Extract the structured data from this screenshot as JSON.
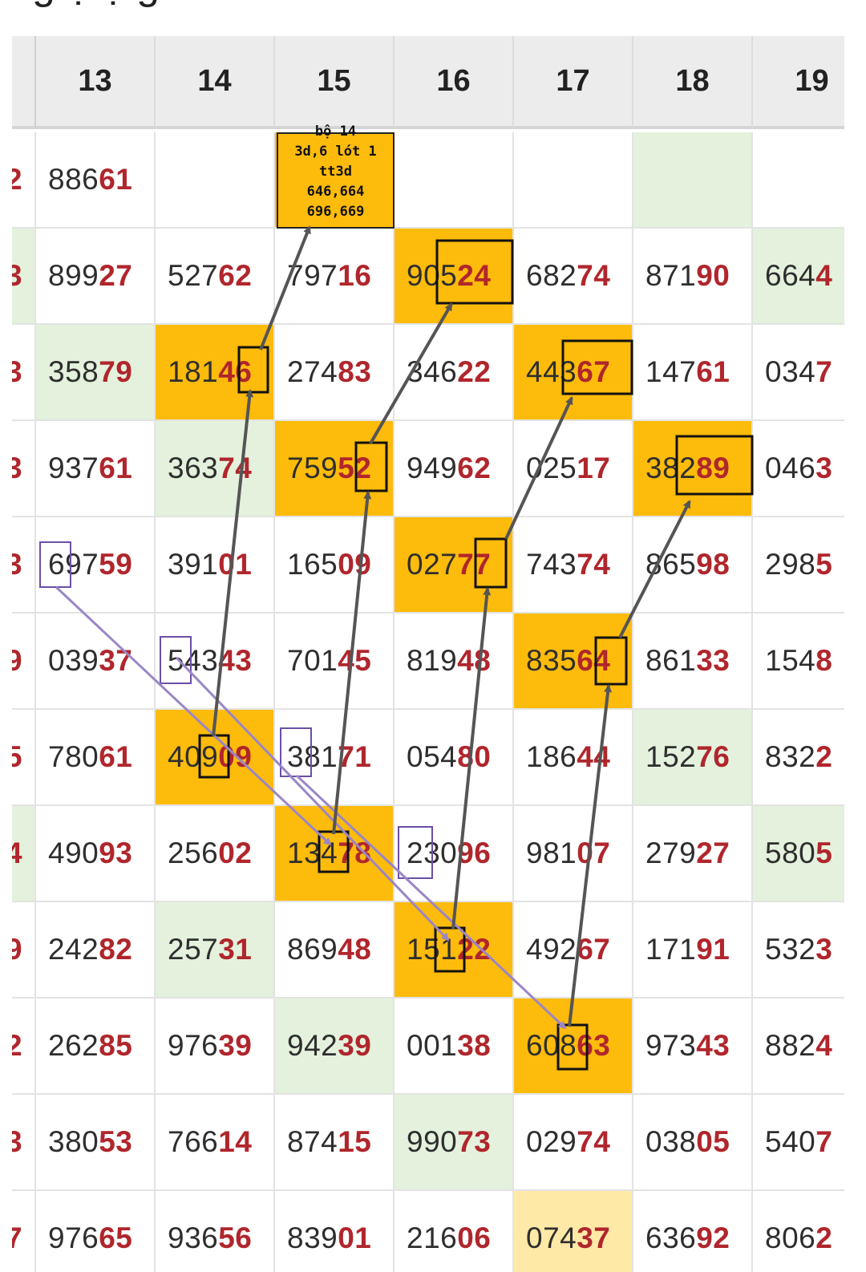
{
  "heading_fragment": "g ọ ọ g",
  "columns": [
    "",
    "13",
    "14",
    "15",
    "16",
    "17",
    "18",
    "19"
  ],
  "rows": [
    [
      {
        "p": "",
        "t": "2",
        "bg": "white"
      },
      {
        "p": "886",
        "t": "61",
        "bg": "white"
      },
      {
        "p": "",
        "t": "",
        "bg": "white"
      },
      {
        "p": "",
        "t": "",
        "bg": "gold"
      },
      {
        "p": "",
        "t": "",
        "bg": "white"
      },
      {
        "p": "",
        "t": "",
        "bg": "white"
      },
      {
        "p": "",
        "t": "",
        "bg": "green"
      },
      {
        "p": "",
        "t": "",
        "bg": "white"
      }
    ],
    [
      {
        "p": "",
        "t": "3",
        "bg": "green"
      },
      {
        "p": "899",
        "t": "27",
        "bg": "white"
      },
      {
        "p": "527",
        "t": "62",
        "bg": "white"
      },
      {
        "p": "797",
        "t": "16",
        "bg": "white"
      },
      {
        "p": "905",
        "t": "24",
        "bg": "gold"
      },
      {
        "p": "682",
        "t": "74",
        "bg": "white"
      },
      {
        "p": "871",
        "t": "90",
        "bg": "white"
      },
      {
        "p": "664",
        "t": "4",
        "bg": "green"
      }
    ],
    [
      {
        "p": "",
        "t": "3",
        "bg": "white"
      },
      {
        "p": "358",
        "t": "79",
        "bg": "green"
      },
      {
        "p": "181",
        "t": "46",
        "bg": "gold"
      },
      {
        "p": "274",
        "t": "83",
        "bg": "white"
      },
      {
        "p": "346",
        "t": "22",
        "bg": "white"
      },
      {
        "p": "443",
        "t": "67",
        "bg": "gold"
      },
      {
        "p": "147",
        "t": "61",
        "bg": "white"
      },
      {
        "p": "034",
        "t": "7",
        "bg": "white"
      }
    ],
    [
      {
        "p": "",
        "t": "3",
        "bg": "white"
      },
      {
        "p": "937",
        "t": "61",
        "bg": "white"
      },
      {
        "p": "363",
        "t": "74",
        "bg": "green"
      },
      {
        "p": "759",
        "t": "52",
        "bg": "gold"
      },
      {
        "p": "949",
        "t": "62",
        "bg": "white"
      },
      {
        "p": "025",
        "t": "17",
        "bg": "white"
      },
      {
        "p": "382",
        "t": "89",
        "bg": "gold"
      },
      {
        "p": "046",
        "t": "3",
        "bg": "white"
      }
    ],
    [
      {
        "p": "",
        "t": "3",
        "bg": "white"
      },
      {
        "p": "697",
        "t": "59",
        "bg": "white"
      },
      {
        "p": "391",
        "t": "01",
        "bg": "white"
      },
      {
        "p": "165",
        "t": "09",
        "bg": "white"
      },
      {
        "p": "027",
        "t": "77",
        "bg": "gold"
      },
      {
        "p": "743",
        "t": "74",
        "bg": "white"
      },
      {
        "p": "865",
        "t": "98",
        "bg": "white"
      },
      {
        "p": "298",
        "t": "5",
        "bg": "white"
      }
    ],
    [
      {
        "p": "",
        "t": "9",
        "bg": "white"
      },
      {
        "p": "039",
        "t": "37",
        "bg": "white"
      },
      {
        "p": "543",
        "t": "43",
        "bg": "white"
      },
      {
        "p": "701",
        "t": "45",
        "bg": "white"
      },
      {
        "p": "819",
        "t": "48",
        "bg": "white"
      },
      {
        "p": "835",
        "t": "64",
        "bg": "gold"
      },
      {
        "p": "861",
        "t": "33",
        "bg": "white"
      },
      {
        "p": "154",
        "t": "8",
        "bg": "white"
      }
    ],
    [
      {
        "p": "",
        "t": "5",
        "bg": "white"
      },
      {
        "p": "780",
        "t": "61",
        "bg": "white"
      },
      {
        "p": "409",
        "t": "09",
        "bg": "gold"
      },
      {
        "p": "381",
        "t": "71",
        "bg": "white"
      },
      {
        "p": "054",
        "t": "80",
        "bg": "white"
      },
      {
        "p": "186",
        "t": "44",
        "bg": "white"
      },
      {
        "p": "152",
        "t": "76",
        "bg": "green"
      },
      {
        "p": "832",
        "t": "2",
        "bg": "white"
      }
    ],
    [
      {
        "p": "",
        "t": "4",
        "bg": "green"
      },
      {
        "p": "490",
        "t": "93",
        "bg": "white"
      },
      {
        "p": "256",
        "t": "02",
        "bg": "white"
      },
      {
        "p": "134",
        "t": "78",
        "bg": "gold"
      },
      {
        "p": "230",
        "t": "96",
        "bg": "white"
      },
      {
        "p": "981",
        "t": "07",
        "bg": "white"
      },
      {
        "p": "279",
        "t": "27",
        "bg": "white"
      },
      {
        "p": "580",
        "t": "5",
        "bg": "green"
      }
    ],
    [
      {
        "p": "",
        "t": "9",
        "bg": "white"
      },
      {
        "p": "242",
        "t": "82",
        "bg": "white"
      },
      {
        "p": "257",
        "t": "31",
        "bg": "green"
      },
      {
        "p": "869",
        "t": "48",
        "bg": "white"
      },
      {
        "p": "151",
        "t": "22",
        "bg": "gold"
      },
      {
        "p": "492",
        "t": "67",
        "bg": "white"
      },
      {
        "p": "171",
        "t": "91",
        "bg": "white"
      },
      {
        "p": "532",
        "t": "3",
        "bg": "white"
      }
    ],
    [
      {
        "p": "",
        "t": "2",
        "bg": "white"
      },
      {
        "p": "262",
        "t": "85",
        "bg": "white"
      },
      {
        "p": "976",
        "t": "39",
        "bg": "white"
      },
      {
        "p": "942",
        "t": "39",
        "bg": "green"
      },
      {
        "p": "001",
        "t": "38",
        "bg": "white"
      },
      {
        "p": "608",
        "t": "63",
        "bg": "gold"
      },
      {
        "p": "973",
        "t": "43",
        "bg": "white"
      },
      {
        "p": "882",
        "t": "4",
        "bg": "white"
      }
    ],
    [
      {
        "p": "",
        "t": "3",
        "bg": "white"
      },
      {
        "p": "380",
        "t": "53",
        "bg": "white"
      },
      {
        "p": "766",
        "t": "14",
        "bg": "white"
      },
      {
        "p": "874",
        "t": "15",
        "bg": "white"
      },
      {
        "p": "990",
        "t": "73",
        "bg": "green"
      },
      {
        "p": "029",
        "t": "74",
        "bg": "white"
      },
      {
        "p": "038",
        "t": "05",
        "bg": "white"
      },
      {
        "p": "540",
        "t": "7",
        "bg": "white"
      }
    ],
    [
      {
        "p": "",
        "t": "7",
        "bg": "white"
      },
      {
        "p": "976",
        "t": "65",
        "bg": "white"
      },
      {
        "p": "936",
        "t": "56",
        "bg": "white"
      },
      {
        "p": "839",
        "t": "01",
        "bg": "white"
      },
      {
        "p": "216",
        "t": "06",
        "bg": "white"
      },
      {
        "p": "074",
        "t": "37",
        "bg": "light"
      },
      {
        "p": "636",
        "t": "92",
        "bg": "white"
      },
      {
        "p": "806",
        "t": "2",
        "bg": "white"
      }
    ]
  ],
  "note": [
    "bộ 14",
    "3d,6 lót 1",
    "tt3d",
    "646,664",
    "696,669"
  ],
  "colors": {
    "gold": "#fdbb0b",
    "green": "#e4f1dd",
    "light": "#ffe9a6",
    "red_digits": "#b0262c",
    "dark_arrow": "#555555",
    "purple_arrow": "#9a86c6",
    "purple_box": "#6a4fa8"
  }
}
